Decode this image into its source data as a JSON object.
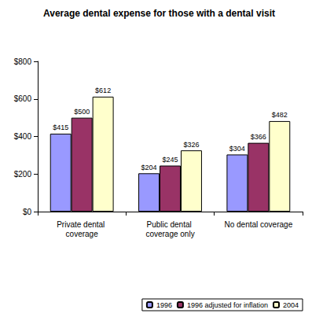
{
  "chart_data": {
    "type": "bar",
    "title": "Average dental expense for those with a dental visit",
    "categories": [
      "Private dental coverage",
      "Public dental coverage only",
      "No dental coverage"
    ],
    "series": [
      {
        "name": "1996",
        "color": "#9999ff",
        "values": [
          415,
          204,
          304
        ],
        "value_labels": [
          "$415",
          "$204",
          "$304"
        ]
      },
      {
        "name": "1996 adjusted for inflation",
        "color": "#993366",
        "values": [
          500,
          245,
          366
        ],
        "value_labels": [
          "$500",
          "$245",
          "$366"
        ]
      },
      {
        "name": "2004",
        "color": "#ffffcc",
        "values": [
          612,
          326,
          482
        ],
        "value_labels": [
          "$612",
          "$326",
          "$482"
        ]
      }
    ],
    "ylim": [
      0,
      800
    ],
    "yticks": [
      {
        "value": 0,
        "label": "$0"
      },
      {
        "value": 200,
        "label": "$200"
      },
      {
        "value": 400,
        "label": "$400"
      },
      {
        "value": 600,
        "label": "$600"
      },
      {
        "value": 800,
        "label": "$800"
      }
    ],
    "grid": false,
    "legend": "bottom-right",
    "data_labels": true
  }
}
